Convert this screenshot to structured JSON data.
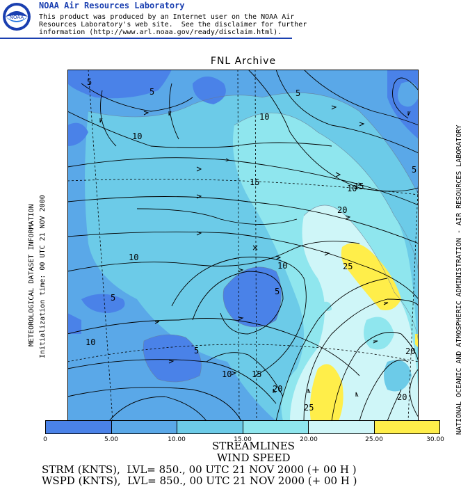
{
  "header": {
    "org": "NOAA Air Resources Laboratory",
    "logo_text": "NOAA",
    "disclaimer": "This product was produced by an Internet user on the NOAA Air\nResources Laboratory's web site.  See the disclaimer for further\ninformation (http://www.arl.noaa.gov/ready/disclaim.html)."
  },
  "map": {
    "title": "FNL Archive",
    "left_label_1": "METEOROLOGICAL DATASET INFORMATION",
    "left_label_2": "Initialization time: 00 UTC 21 NOV 2000",
    "right_label": "NATIONAL OCEANIC AND ATMOSPHERIC ADMINISTRATION - AIR RESOURCES LABORATORY",
    "contour_labels": [
      "5",
      "5",
      "5",
      "5",
      "5",
      "5",
      "5",
      "10",
      "10",
      "10",
      "10",
      "10",
      "10",
      "10",
      "15",
      "15",
      "15",
      "20",
      "20",
      "20",
      "20",
      "25",
      "25"
    ]
  },
  "legend": {
    "colors": [
      "#4a82e8",
      "#5aa8e8",
      "#6ccbe8",
      "#8fe6ee",
      "#cff6f8",
      "#ffee4a"
    ],
    "ticks": [
      "0",
      "5.00",
      "10.00",
      "15.00",
      "20.00",
      "25.00",
      "30.00"
    ]
  },
  "footer": {
    "line1": "STREAMLINES",
    "line2": "WIND SPEED",
    "line3": "STRM (KNTS),  LVL= 850., 00 UTC 21 NOV 2000 (+ 00 H )",
    "line4": "WSPD (KNTS),  LVL= 850., 00 UTC 21 NOV 2000 (+ 00 H )"
  }
}
